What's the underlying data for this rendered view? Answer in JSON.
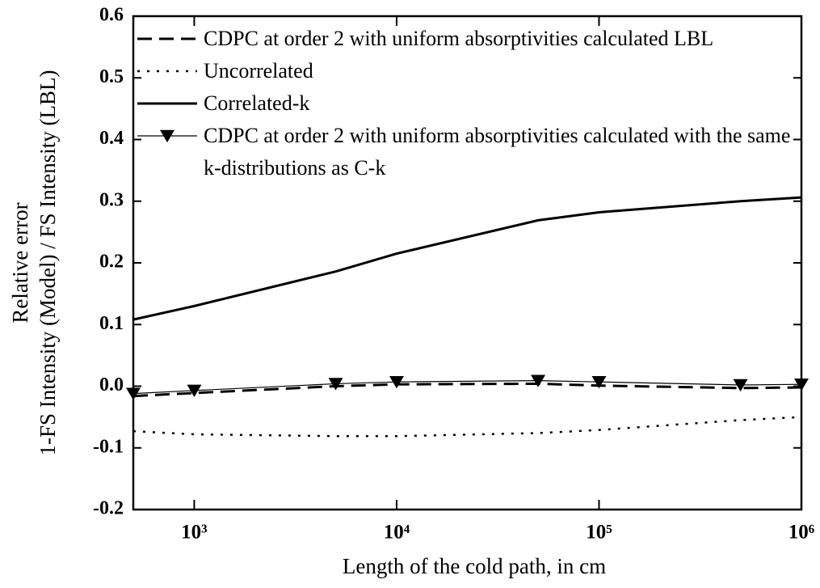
{
  "chart_data": {
    "type": "line",
    "xlabel": "Length of the cold path, in cm",
    "ylabel": [
      "Relative error",
      "1-FS Intensity (Model) / FS Intensity (LBL)"
    ],
    "x": [
      500,
      1000,
      5000,
      10000,
      50000,
      100000,
      500000,
      1000000
    ],
    "xscale": "log",
    "xlim": [
      500,
      1000000
    ],
    "xticks": [
      {
        "value": 1000,
        "label": "10³"
      },
      {
        "value": 10000,
        "label": "10⁴"
      },
      {
        "value": 100000,
        "label": "10⁵"
      },
      {
        "value": 1000000,
        "label": "10⁶"
      }
    ],
    "ylim": [
      -0.2,
      0.6
    ],
    "yticks": [
      -0.2,
      -0.1,
      {
        "value": 0,
        "label": "0.0"
      },
      0.1,
      0.2,
      0.3,
      0.4,
      0.5,
      0.6
    ],
    "legend": "upper right",
    "series": [
      {
        "name": "CDPC at order 2 with uniform absorptivities calculated LBL",
        "color": "#000000",
        "dash": "dashed",
        "width": 3,
        "values": [
          -0.016,
          -0.011,
          0.0,
          0.003,
          0.004,
          0.001,
          -0.003,
          -0.002
        ]
      },
      {
        "name": "Uncorrelated",
        "color": "#000000",
        "dash": "dotted",
        "width": 2.5,
        "values": [
          -0.073,
          -0.078,
          -0.081,
          -0.081,
          -0.076,
          -0.071,
          -0.055,
          -0.05
        ]
      },
      {
        "name": "Correlated-k",
        "color": "#000000",
        "dash": "solid",
        "width": 3,
        "values": [
          0.108,
          0.13,
          0.186,
          0.215,
          0.269,
          0.282,
          0.3,
          0.306
        ]
      },
      {
        "name": "CDPC at order 2 with uniform absorptivities calculated with the same k-distributions as C-k",
        "color": "#000000",
        "dash": "solid",
        "width": 1.2,
        "marker": "triangle-down",
        "values": [
          -0.012,
          -0.007,
          0.004,
          0.007,
          0.009,
          0.007,
          0.002,
          0.003
        ]
      }
    ]
  }
}
